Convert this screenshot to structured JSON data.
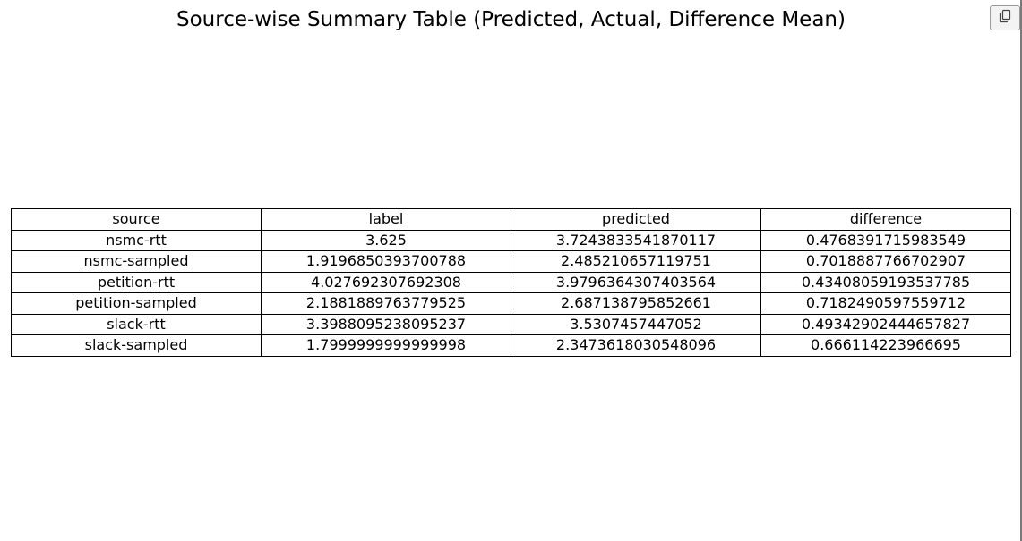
{
  "title": "Source-wise Summary Table (Predicted, Actual, Difference Mean)",
  "toolbar": {
    "copy_icon": "copy-icon"
  },
  "chart_data": {
    "type": "table",
    "title": "Source-wise Summary Table (Predicted, Actual, Difference Mean)",
    "columns": [
      "source",
      "label",
      "predicted",
      "difference"
    ],
    "rows": [
      [
        "nsmc-rtt",
        "3.625",
        "3.7243833541870117",
        "0.4768391715983549"
      ],
      [
        "nsmc-sampled",
        "1.9196850393700788",
        "2.485210657119751",
        "0.7018887766702907"
      ],
      [
        "petition-rtt",
        "4.027692307692308",
        "3.9796364307403564",
        "0.43408059193537785"
      ],
      [
        "petition-sampled",
        "2.1881889763779525",
        "2.687138795852661",
        "0.7182490597559712"
      ],
      [
        "slack-rtt",
        "3.3988095238095237",
        "3.5307457447052",
        "0.49342902444657827"
      ],
      [
        "slack-sampled",
        "1.7999999999999998",
        "2.3473618030548096",
        "0.666114223966695"
      ]
    ]
  }
}
